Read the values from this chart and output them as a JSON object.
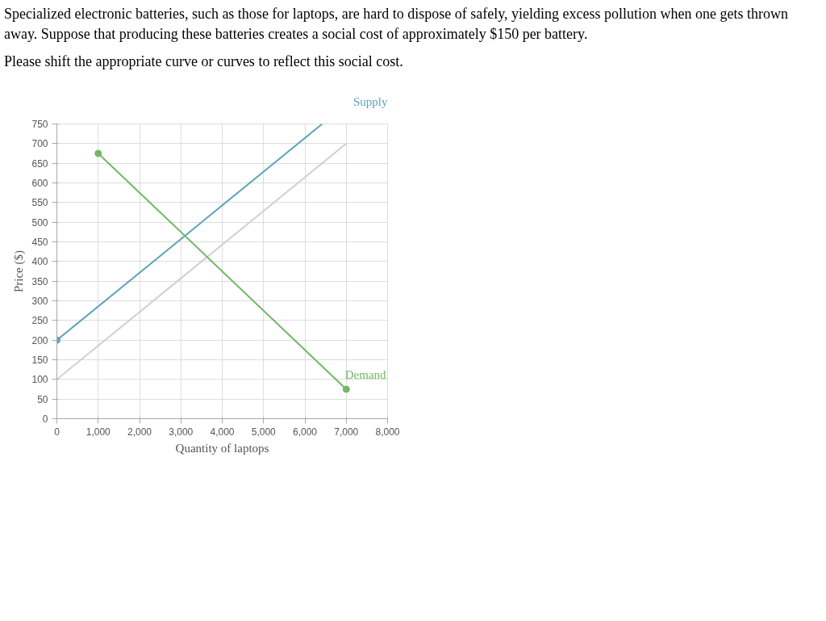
{
  "chart_data": {
    "type": "line",
    "title": "Specialized electronic batteries, such as those for laptops, are hard to dispose of safely, yielding excess pollution when one gets thrown away. Suppose that producing these batteries creates a social cost of approximately $150 per battery.",
    "subtitle": "Please shift the appropriate curve or curves to reflect this social cost.",
    "xlabel": "Quantity of laptops",
    "ylabel": "Price ($)",
    "series": [
      {
        "color": "#d0d0d0",
        "x": [
          0,
          7000
        ],
        "values": [
          100,
          700
        ],
        "marker": "none"
      },
      {
        "name": "Supply",
        "color": "#5aa4b8",
        "x": [
          0,
          6417
        ],
        "values": [
          200,
          750
        ],
        "marker": "none"
      },
      {
        "color": "#5aa4b8",
        "type": "scatter",
        "x": [
          0
        ],
        "values": [
          200
        ],
        "marker": "circle"
      },
      {
        "name": "Demand",
        "color": "#72b866",
        "x": [
          1000,
          7000
        ],
        "values": [
          675,
          75
        ],
        "marker": "circle"
      }
    ],
    "xlim": [
      0,
      8000
    ],
    "ylim": [
      0,
      750
    ],
    "xticks": [
      0,
      {
        "value": 1000,
        "label": "1,000"
      },
      {
        "value": 2000,
        "label": "2,000"
      },
      {
        "value": 3000,
        "label": "3,000"
      },
      {
        "value": 4000,
        "label": "4,000"
      },
      {
        "value": 5000,
        "label": "5,000"
      },
      {
        "value": 6000,
        "label": "6,000"
      },
      {
        "value": 7000,
        "label": "7,000"
      },
      {
        "value": 8000,
        "label": "8,000"
      }
    ],
    "yticks": [
      0,
      50,
      100,
      150,
      200,
      250,
      300,
      350,
      400,
      450,
      500,
      550,
      600,
      650,
      700,
      750
    ],
    "grid": true,
    "line_style": "solid"
  }
}
